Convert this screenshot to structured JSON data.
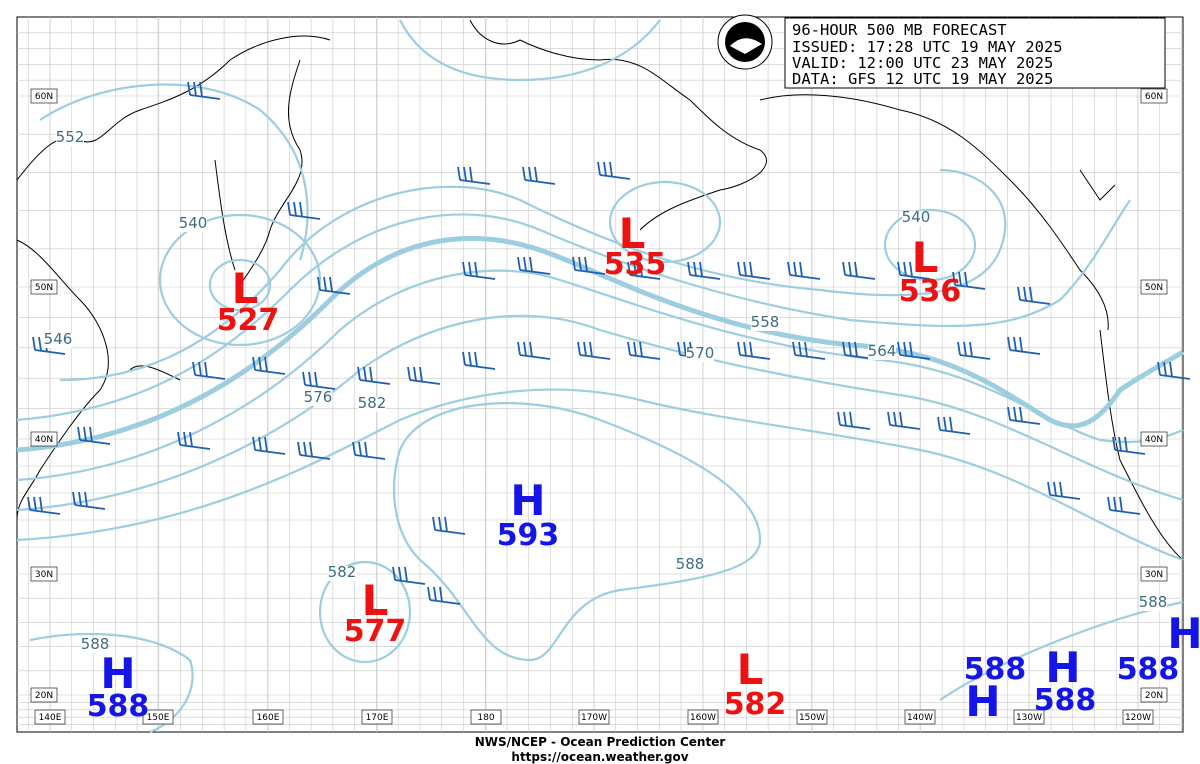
{
  "header": {
    "lines": [
      "96-HOUR 500 MB FORECAST",
      "ISSUED: 17:28 UTC 19 MAY 2025",
      "VALID:  12:00 UTC 23 MAY 2025",
      "DATA:  GFS 12 UTC 19 MAY 2025"
    ]
  },
  "centers": [
    {
      "type": "L",
      "value": 527
    },
    {
      "type": "L",
      "value": 535
    },
    {
      "type": "L",
      "value": 536
    },
    {
      "type": "H",
      "value": 593
    },
    {
      "type": "L",
      "value": 577
    },
    {
      "type": "L",
      "value": 582
    },
    {
      "type": "H",
      "value": 588
    },
    {
      "type": "H",
      "value": 588
    },
    {
      "type": "H",
      "value": 588
    },
    {
      "type": "H",
      "value": 588
    }
  ],
  "contour_labels": [
    552,
    540,
    546,
    576,
    582,
    540,
    558,
    570,
    564,
    582,
    588,
    588,
    588
  ],
  "lat_labels": [
    "60N",
    "50N",
    "40N",
    "30N",
    "20N"
  ],
  "lon_labels": [
    "140E",
    "150E",
    "160E",
    "170E",
    "180",
    "170W",
    "160W",
    "150W",
    "140W",
    "130W",
    "120W"
  ],
  "footer": {
    "agency": "NWS/NCEP - Ocean Prediction Center",
    "url": "https://ocean.weather.gov"
  }
}
